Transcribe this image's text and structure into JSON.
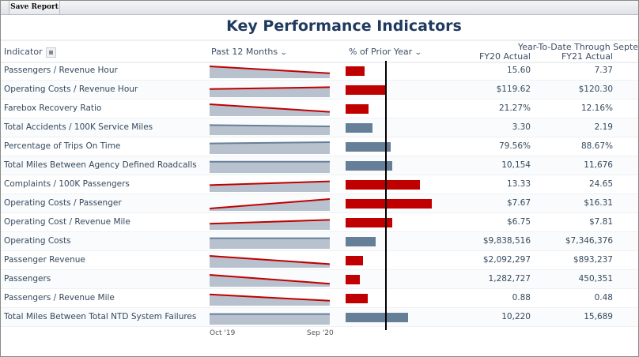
{
  "toolbar": {
    "save_label": "Save Report"
  },
  "title": "Key Performance Indicators",
  "headers": {
    "indicator": "Indicator",
    "past12": "Past 12 Months",
    "pct_prior": "% of Prior Year",
    "ytd_group": "Year-To-Date Through September",
    "fy20": "FY20 Actual",
    "fy21": "FY21 Actual"
  },
  "sparkline_axis": {
    "start": "Oct '19",
    "end": "Sep '20"
  },
  "colors": {
    "bad": "#c00000",
    "good": "#667f99",
    "fill": "#b8c2ce",
    "title": "#1f3a5f"
  },
  "rows": [
    {
      "indicator": "Passengers / Revenue Hour",
      "fy20": "15.60",
      "fy21": "7.37",
      "pct": 47,
      "status": "bad",
      "trend": [
        100,
        45
      ]
    },
    {
      "indicator": "Operating Costs / Revenue Hour",
      "fy20": "$119.62",
      "fy21": "$120.30",
      "pct": 101,
      "status": "bad",
      "trend": [
        70,
        85
      ]
    },
    {
      "indicator": "Farebox Recovery Ratio",
      "fy20": "21.27%",
      "fy21": "12.16%",
      "pct": 57,
      "status": "bad",
      "trend": [
        100,
        40
      ]
    },
    {
      "indicator": "Total Accidents / 100K Service Miles",
      "fy20": "3.30",
      "fy21": "2.19",
      "pct": 66,
      "status": "good",
      "trend": [
        85,
        75
      ]
    },
    {
      "indicator": "Percentage of Trips On Time",
      "fy20": "79.56%",
      "fy21": "88.67%",
      "pct": 111,
      "status": "good",
      "trend": [
        90,
        100
      ]
    },
    {
      "indicator": "Total Miles Between Agency Defined Roadcalls",
      "fy20": "10,154",
      "fy21": "11,676",
      "pct": 115,
      "status": "good",
      "trend": [
        95,
        95
      ]
    },
    {
      "indicator": "Complaints / 100K Passengers",
      "fy20": "13.33",
      "fy21": "24.65",
      "pct": 185,
      "status": "bad",
      "trend": [
        60,
        90
      ]
    },
    {
      "indicator": "Operating Costs / Passenger",
      "fy20": "$7.67",
      "fy21": "$16.31",
      "pct": 213,
      "status": "bad",
      "trend": [
        25,
        100
      ]
    },
    {
      "indicator": "Operating Cost / Revenue Mile",
      "fy20": "$6.75",
      "fy21": "$7.81",
      "pct": 116,
      "status": "bad",
      "trend": [
        55,
        85
      ]
    },
    {
      "indicator": "Operating Costs",
      "fy20": "$9,838,516",
      "fy21": "$7,346,376",
      "pct": 75,
      "status": "good",
      "trend": [
        90,
        90
      ]
    },
    {
      "indicator": "Passenger Revenue",
      "fy20": "$2,092,297",
      "fy21": "$893,237",
      "pct": 43,
      "status": "bad",
      "trend": [
        100,
        35
      ]
    },
    {
      "indicator": "Passengers",
      "fy20": "1,282,727",
      "fy21": "450,351",
      "pct": 35,
      "status": "bad",
      "trend": [
        100,
        30
      ]
    },
    {
      "indicator": "Passengers / Revenue Mile",
      "fy20": "0.88",
      "fy21": "0.48",
      "pct": 55,
      "status": "bad",
      "trend": [
        95,
        45
      ]
    },
    {
      "indicator": "Total Miles Between Total NTD System Failures",
      "fy20": "10,220",
      "fy21": "15,689",
      "pct": 154,
      "status": "good",
      "trend": [
        90,
        90
      ]
    }
  ]
}
